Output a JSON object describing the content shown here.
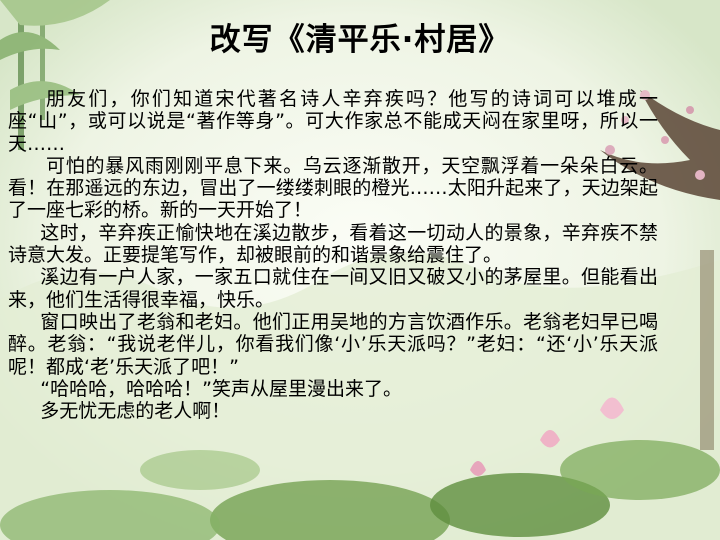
{
  "slide": {
    "title": "改写《清平乐·村居》",
    "paragraphs": [
      "朋友们，你们知道宋代著名诗人辛弃疾吗？他写的诗词可以堆成一座“山”，或可以说是“著作等身”。可大作家总不能成天闷在家里呀，所以一天……",
      "可怕的暴风雨刚刚平息下来。乌云逐渐散开，天空飘浮着一朵朵白云。看！在那遥远的东边，冒出了一缕缕刺眼的橙光……太阳升起来了，天边架起了一座七彩的桥。新的一天开始了！",
      "这时，辛弃疾正愉快地在溪边散步，看着这一切动人的景象，辛弃疾不禁诗意大发。正要提笔写作，却被眼前的和谐景象给震住了。",
      "溪边有一户人家，一家五口就住在一间又旧又破又小的茅屋里。但能看出来，他们生活得很幸福，快乐。",
      "窗口映出了老翁和老妇。他们正用吴地的方言饮酒作乐。老翁老妇早已喝醉。老翁：“我说老伴儿，你看我们像‘小’乐天派吗？”老妇：“还‘小’乐天派呢！都成‘老’乐天派了吧！”",
      "“哈哈哈，哈哈哈！”笑声从屋里漫出来了。",
      "多无忧无虑的老人啊！"
    ]
  }
}
